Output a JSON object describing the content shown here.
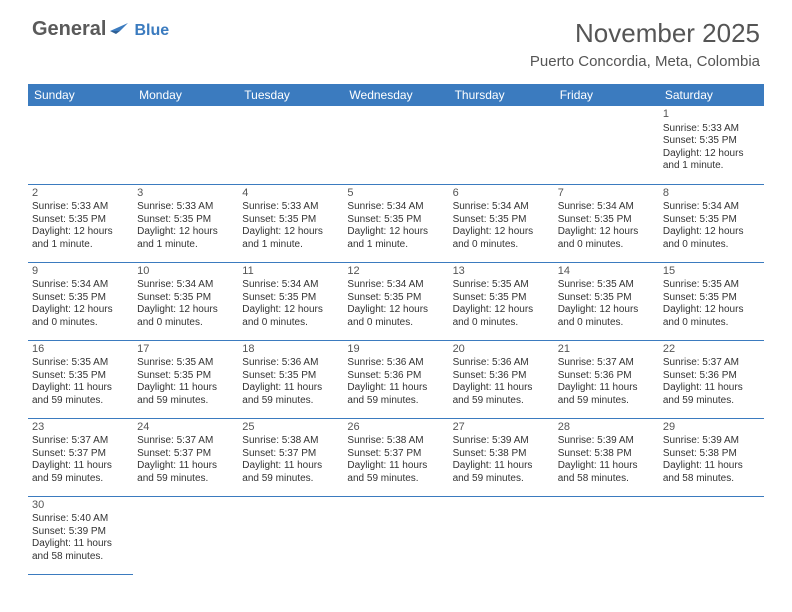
{
  "logo": {
    "text1": "General",
    "text2": "Blue"
  },
  "title": "November 2025",
  "location": "Puerto Concordia, Meta, Colombia",
  "colors": {
    "header_bg": "#3b7bbf",
    "header_text": "#ffffff",
    "rule": "#3b7bbf",
    "body_text": "#333333",
    "title_text": "#555555",
    "logo_gray": "#5a5a5a",
    "logo_blue": "#3b7bbf",
    "background": "#ffffff"
  },
  "weekdays": [
    "Sunday",
    "Monday",
    "Tuesday",
    "Wednesday",
    "Thursday",
    "Friday",
    "Saturday"
  ],
  "layout": {
    "first_weekday_index": 6,
    "days_in_month": 30
  },
  "days": {
    "1": {
      "sunrise": "Sunrise: 5:33 AM",
      "sunset": "Sunset: 5:35 PM",
      "daylight1": "Daylight: 12 hours",
      "daylight2": "and 1 minute."
    },
    "2": {
      "sunrise": "Sunrise: 5:33 AM",
      "sunset": "Sunset: 5:35 PM",
      "daylight1": "Daylight: 12 hours",
      "daylight2": "and 1 minute."
    },
    "3": {
      "sunrise": "Sunrise: 5:33 AM",
      "sunset": "Sunset: 5:35 PM",
      "daylight1": "Daylight: 12 hours",
      "daylight2": "and 1 minute."
    },
    "4": {
      "sunrise": "Sunrise: 5:33 AM",
      "sunset": "Sunset: 5:35 PM",
      "daylight1": "Daylight: 12 hours",
      "daylight2": "and 1 minute."
    },
    "5": {
      "sunrise": "Sunrise: 5:34 AM",
      "sunset": "Sunset: 5:35 PM",
      "daylight1": "Daylight: 12 hours",
      "daylight2": "and 1 minute."
    },
    "6": {
      "sunrise": "Sunrise: 5:34 AM",
      "sunset": "Sunset: 5:35 PM",
      "daylight1": "Daylight: 12 hours",
      "daylight2": "and 0 minutes."
    },
    "7": {
      "sunrise": "Sunrise: 5:34 AM",
      "sunset": "Sunset: 5:35 PM",
      "daylight1": "Daylight: 12 hours",
      "daylight2": "and 0 minutes."
    },
    "8": {
      "sunrise": "Sunrise: 5:34 AM",
      "sunset": "Sunset: 5:35 PM",
      "daylight1": "Daylight: 12 hours",
      "daylight2": "and 0 minutes."
    },
    "9": {
      "sunrise": "Sunrise: 5:34 AM",
      "sunset": "Sunset: 5:35 PM",
      "daylight1": "Daylight: 12 hours",
      "daylight2": "and 0 minutes."
    },
    "10": {
      "sunrise": "Sunrise: 5:34 AM",
      "sunset": "Sunset: 5:35 PM",
      "daylight1": "Daylight: 12 hours",
      "daylight2": "and 0 minutes."
    },
    "11": {
      "sunrise": "Sunrise: 5:34 AM",
      "sunset": "Sunset: 5:35 PM",
      "daylight1": "Daylight: 12 hours",
      "daylight2": "and 0 minutes."
    },
    "12": {
      "sunrise": "Sunrise: 5:34 AM",
      "sunset": "Sunset: 5:35 PM",
      "daylight1": "Daylight: 12 hours",
      "daylight2": "and 0 minutes."
    },
    "13": {
      "sunrise": "Sunrise: 5:35 AM",
      "sunset": "Sunset: 5:35 PM",
      "daylight1": "Daylight: 12 hours",
      "daylight2": "and 0 minutes."
    },
    "14": {
      "sunrise": "Sunrise: 5:35 AM",
      "sunset": "Sunset: 5:35 PM",
      "daylight1": "Daylight: 12 hours",
      "daylight2": "and 0 minutes."
    },
    "15": {
      "sunrise": "Sunrise: 5:35 AM",
      "sunset": "Sunset: 5:35 PM",
      "daylight1": "Daylight: 12 hours",
      "daylight2": "and 0 minutes."
    },
    "16": {
      "sunrise": "Sunrise: 5:35 AM",
      "sunset": "Sunset: 5:35 PM",
      "daylight1": "Daylight: 11 hours",
      "daylight2": "and 59 minutes."
    },
    "17": {
      "sunrise": "Sunrise: 5:35 AM",
      "sunset": "Sunset: 5:35 PM",
      "daylight1": "Daylight: 11 hours",
      "daylight2": "and 59 minutes."
    },
    "18": {
      "sunrise": "Sunrise: 5:36 AM",
      "sunset": "Sunset: 5:35 PM",
      "daylight1": "Daylight: 11 hours",
      "daylight2": "and 59 minutes."
    },
    "19": {
      "sunrise": "Sunrise: 5:36 AM",
      "sunset": "Sunset: 5:36 PM",
      "daylight1": "Daylight: 11 hours",
      "daylight2": "and 59 minutes."
    },
    "20": {
      "sunrise": "Sunrise: 5:36 AM",
      "sunset": "Sunset: 5:36 PM",
      "daylight1": "Daylight: 11 hours",
      "daylight2": "and 59 minutes."
    },
    "21": {
      "sunrise": "Sunrise: 5:37 AM",
      "sunset": "Sunset: 5:36 PM",
      "daylight1": "Daylight: 11 hours",
      "daylight2": "and 59 minutes."
    },
    "22": {
      "sunrise": "Sunrise: 5:37 AM",
      "sunset": "Sunset: 5:36 PM",
      "daylight1": "Daylight: 11 hours",
      "daylight2": "and 59 minutes."
    },
    "23": {
      "sunrise": "Sunrise: 5:37 AM",
      "sunset": "Sunset: 5:37 PM",
      "daylight1": "Daylight: 11 hours",
      "daylight2": "and 59 minutes."
    },
    "24": {
      "sunrise": "Sunrise: 5:37 AM",
      "sunset": "Sunset: 5:37 PM",
      "daylight1": "Daylight: 11 hours",
      "daylight2": "and 59 minutes."
    },
    "25": {
      "sunrise": "Sunrise: 5:38 AM",
      "sunset": "Sunset: 5:37 PM",
      "daylight1": "Daylight: 11 hours",
      "daylight2": "and 59 minutes."
    },
    "26": {
      "sunrise": "Sunrise: 5:38 AM",
      "sunset": "Sunset: 5:37 PM",
      "daylight1": "Daylight: 11 hours",
      "daylight2": "and 59 minutes."
    },
    "27": {
      "sunrise": "Sunrise: 5:39 AM",
      "sunset": "Sunset: 5:38 PM",
      "daylight1": "Daylight: 11 hours",
      "daylight2": "and 59 minutes."
    },
    "28": {
      "sunrise": "Sunrise: 5:39 AM",
      "sunset": "Sunset: 5:38 PM",
      "daylight1": "Daylight: 11 hours",
      "daylight2": "and 58 minutes."
    },
    "29": {
      "sunrise": "Sunrise: 5:39 AM",
      "sunset": "Sunset: 5:38 PM",
      "daylight1": "Daylight: 11 hours",
      "daylight2": "and 58 minutes."
    },
    "30": {
      "sunrise": "Sunrise: 5:40 AM",
      "sunset": "Sunset: 5:39 PM",
      "daylight1": "Daylight: 11 hours",
      "daylight2": "and 58 minutes."
    }
  }
}
